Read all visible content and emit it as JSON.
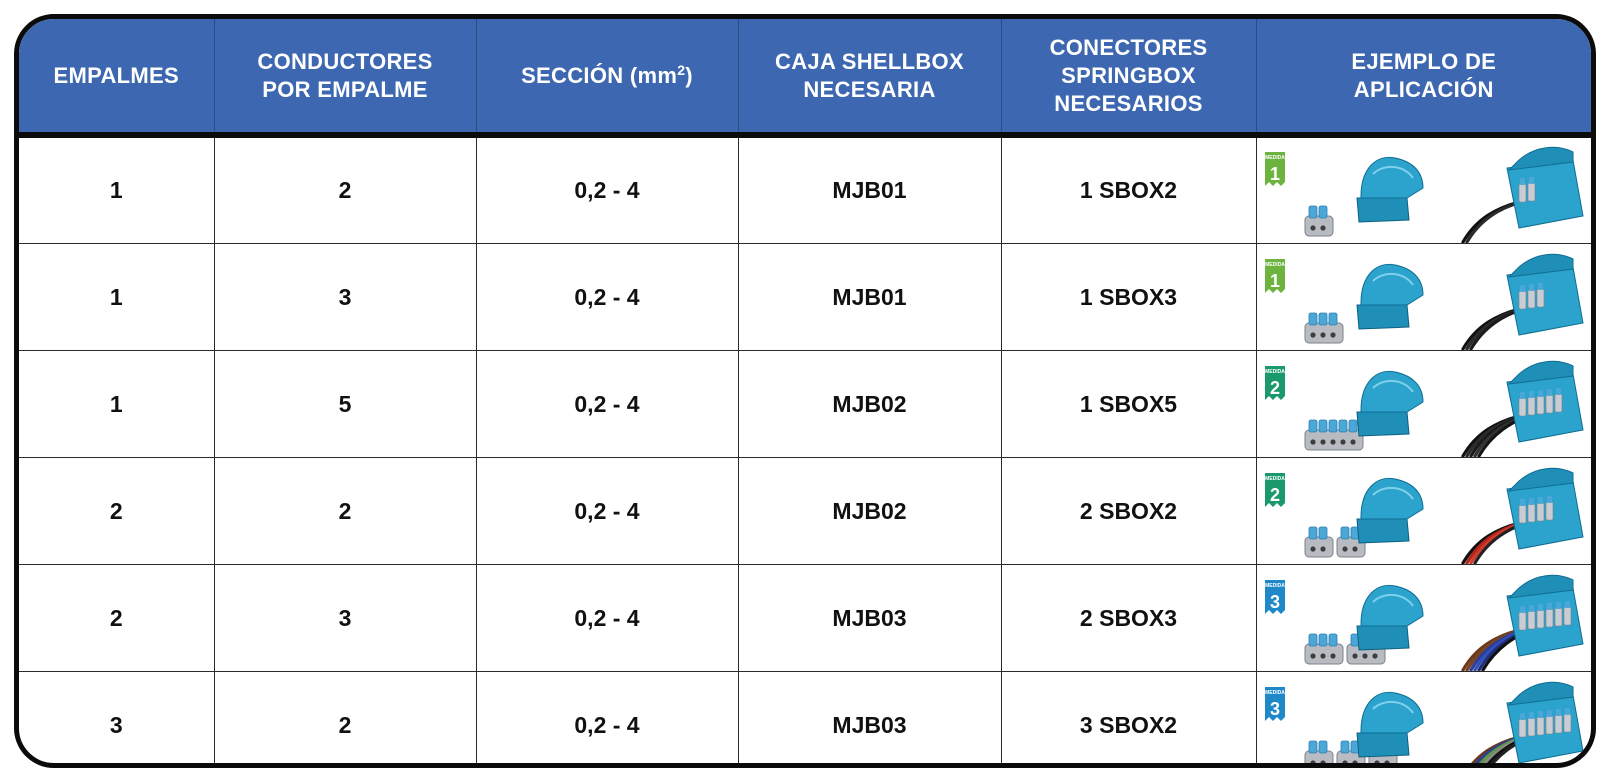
{
  "table": {
    "headers": [
      {
        "label": "EMPALMES"
      },
      {
        "label": "CONDUCTORES\nPOR EMPALME"
      },
      {
        "label": "SECCIÓN (mm",
        "sup": "2",
        "after": ")"
      },
      {
        "label": "CAJA SHELLBOX\nNECESARIA"
      },
      {
        "label": "CONECTORES\nSPRINGBOX\nNECESARIOS"
      },
      {
        "label": "EJEMPLO DE\nAPLICACIÓN"
      }
    ],
    "rows": [
      {
        "empalmes": "1",
        "conductores": "2",
        "seccion": "0,2 - 4",
        "caja": "MJB01",
        "conectores": "1 SBOX2",
        "badge_text": "MEDIDA",
        "badge_number": "1",
        "badge_color": "#6cb33f",
        "connector_count": 1,
        "ports": 2,
        "wires": [
          "#111111",
          "#2b2b2b"
        ]
      },
      {
        "empalmes": "1",
        "conductores": "3",
        "seccion": "0,2 - 4",
        "caja": "MJB01",
        "conectores": "1 SBOX3",
        "badge_text": "MEDIDA",
        "badge_number": "1",
        "badge_color": "#6cb33f",
        "connector_count": 1,
        "ports": 3,
        "wires": [
          "#111111",
          "#2b2b2b",
          "#1b1b1b"
        ]
      },
      {
        "empalmes": "1",
        "conductores": "5",
        "seccion": "0,2 - 4",
        "caja": "MJB02",
        "conectores": "1 SBOX5",
        "badge_text": "MEDIDA",
        "badge_number": "2",
        "badge_color": "#1a9a6c",
        "connector_count": 1,
        "ports": 5,
        "wires": [
          "#111111",
          "#2b2b2b",
          "#1b1b1b",
          "#333333",
          "#161616"
        ]
      },
      {
        "empalmes": "2",
        "conductores": "2",
        "seccion": "0,2 - 4",
        "caja": "MJB02",
        "conectores": "2 SBOX2",
        "badge_text": "MEDIDA",
        "badge_number": "2",
        "badge_color": "#1a9a6c",
        "connector_count": 2,
        "ports": 2,
        "wires": [
          "#111111",
          "#b3261e",
          "#d03a2a",
          "#222222"
        ]
      },
      {
        "empalmes": "2",
        "conductores": "3",
        "seccion": "0,2 - 4",
        "caja": "MJB03",
        "conectores": "2 SBOX3",
        "badge_text": "MEDIDA",
        "badge_number": "3",
        "badge_color": "#1e88c8",
        "connector_count": 2,
        "ports": 3,
        "wires": [
          "#6b3a1c",
          "#7a4420",
          "#2b3f9a",
          "#3550b5",
          "#1f2f80",
          "#111111"
        ]
      },
      {
        "empalmes": "3",
        "conductores": "2",
        "seccion": "0,2 - 4",
        "caja": "MJB03",
        "conectores": "3 SBOX2",
        "badge_text": "MEDIDA",
        "badge_number": "3",
        "badge_color": "#1e88c8",
        "connector_count": 3,
        "ports": 2,
        "wires": [
          "#6b3a1c",
          "#2b3f9a",
          "#5d9b3a",
          "#8a8a8a",
          "#111111",
          "#222222"
        ]
      }
    ]
  }
}
